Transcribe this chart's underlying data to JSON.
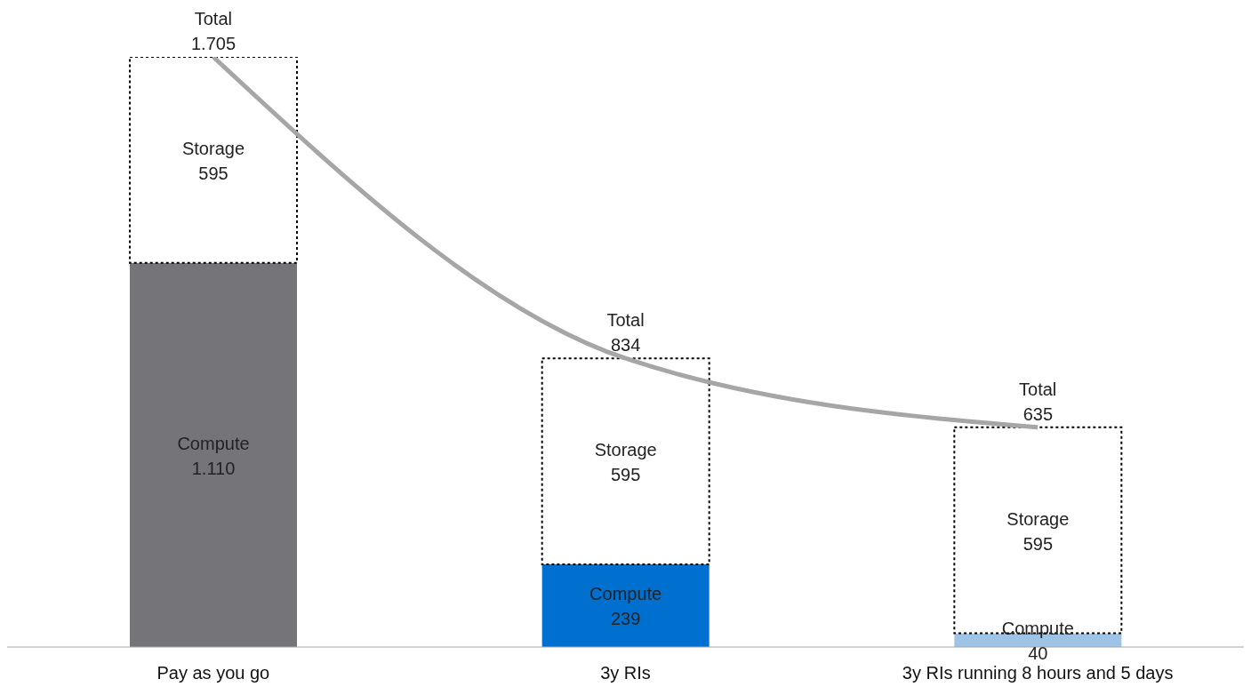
{
  "chart_data": {
    "type": "bar",
    "stacked": true,
    "categories": [
      "Pay as you go",
      "3y RIs",
      "3y RIs running 8 hours and 5 days"
    ],
    "series": [
      {
        "name": "Compute",
        "colors": [
          "#757478",
          "#0070d0",
          "#9dc3e6"
        ],
        "values": [
          1110,
          239,
          40
        ],
        "value_labels": [
          "1.110",
          "239",
          "40"
        ]
      },
      {
        "name": "Storage",
        "color": "#ffffff",
        "values": [
          595,
          595,
          595
        ],
        "value_labels": [
          "595",
          "595",
          "595"
        ],
        "line_style": "dotted"
      },
      {
        "type": "line",
        "color": "#a6a6a6",
        "values": [
          1705,
          834,
          635
        ],
        "marker": "none"
      }
    ],
    "totals": [
      "1.705",
      "834",
      "635"
    ],
    "annotations": [
      {
        "text": "Total",
        "x": "Pay as you go",
        "y": 1705
      },
      {
        "text": "Total",
        "x": "3y RIs",
        "y": 834
      },
      {
        "text": "Total",
        "x": "3y RIs running 8 hours and 5 days",
        "y": 635
      }
    ]
  }
}
